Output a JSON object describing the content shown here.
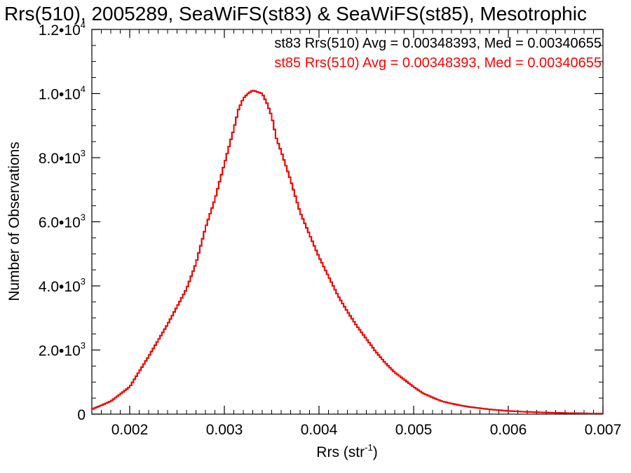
{
  "chart_data": {
    "type": "bar",
    "title": "Rrs(510), 2005289, SeaWiFS(st83) & SeaWiFS(st85), Mesotrophic",
    "xlabel": "Rrs (str",
    "xlabel_sup": "-1",
    "xlabel_close": ")",
    "ylabel": "Number of Observations",
    "xlim": [
      0.0016,
      0.007
    ],
    "ylim": [
      0,
      12000
    ],
    "x_ticks": [
      0.002,
      0.003,
      0.004,
      0.005,
      0.006,
      0.007
    ],
    "x_tick_labels": [
      "0.002",
      "0.003",
      "0.004",
      "0.005",
      "0.006",
      "0.007"
    ],
    "y_ticks": [
      0,
      2000,
      4000,
      6000,
      8000,
      10000,
      12000
    ],
    "y_tick_labels": [
      {
        "mant": "0",
        "exp": ""
      },
      {
        "mant": "2.0•10",
        "exp": "3"
      },
      {
        "mant": "4.0•10",
        "exp": "3"
      },
      {
        "mant": "6.0•10",
        "exp": "3"
      },
      {
        "mant": "8.0•10",
        "exp": "3"
      },
      {
        "mant": "1.0•10",
        "exp": "4"
      },
      {
        "mant": "1.2•10",
        "exp": "4"
      }
    ],
    "grid": false,
    "legend_position": "top-right",
    "series": [
      {
        "name": "st83 Rrs(510) Avg = 0.00348393, Med = 0.00340655",
        "color": "#000000",
        "style": "step",
        "x": [
          0.0016,
          0.0018,
          0.002,
          0.0022,
          0.0024,
          0.0026,
          0.0027,
          0.0028,
          0.0029,
          0.003,
          0.0031,
          0.00315,
          0.0032,
          0.00325,
          0.0033,
          0.00335,
          0.0034,
          0.00345,
          0.0035,
          0.00355,
          0.0036,
          0.0037,
          0.0038,
          0.0039,
          0.004,
          0.0041,
          0.0042,
          0.0043,
          0.0044,
          0.0045,
          0.0046,
          0.0047,
          0.0048,
          0.0049,
          0.005,
          0.0051,
          0.0052,
          0.0053,
          0.0054,
          0.0055,
          0.0056,
          0.0058,
          0.006,
          0.0062,
          0.0064,
          0.0066,
          0.0068,
          0.007
        ],
        "values": [
          150,
          400,
          850,
          1800,
          2800,
          3900,
          4700,
          5800,
          6700,
          7800,
          8900,
          9500,
          9850,
          10000,
          10100,
          10050,
          10000,
          9700,
          9300,
          8600,
          8200,
          7300,
          6300,
          5600,
          4900,
          4300,
          3700,
          3200,
          2750,
          2350,
          1950,
          1600,
          1300,
          1080,
          850,
          650,
          520,
          400,
          330,
          270,
          220,
          150,
          100,
          70,
          50,
          35,
          25,
          15
        ]
      },
      {
        "name": "st85 Rrs(510) Avg = 0.00348393, Med = 0.00340655",
        "color": "#ff0000",
        "style": "step",
        "x": [
          0.0016,
          0.0018,
          0.002,
          0.0022,
          0.0024,
          0.0026,
          0.0027,
          0.0028,
          0.0029,
          0.003,
          0.0031,
          0.00315,
          0.0032,
          0.00325,
          0.0033,
          0.00335,
          0.0034,
          0.00345,
          0.0035,
          0.00355,
          0.0036,
          0.0037,
          0.0038,
          0.0039,
          0.004,
          0.0041,
          0.0042,
          0.0043,
          0.0044,
          0.0045,
          0.0046,
          0.0047,
          0.0048,
          0.0049,
          0.005,
          0.0051,
          0.0052,
          0.0053,
          0.0054,
          0.0055,
          0.0056,
          0.0058,
          0.006,
          0.0062,
          0.0064,
          0.0066,
          0.0068,
          0.007
        ],
        "values": [
          150,
          400,
          850,
          1800,
          2800,
          3900,
          4700,
          5800,
          6700,
          7800,
          8900,
          9500,
          9850,
          10000,
          10100,
          10050,
          10000,
          9700,
          9300,
          8600,
          8200,
          7300,
          6300,
          5600,
          4900,
          4300,
          3700,
          3200,
          2750,
          2350,
          1950,
          1600,
          1300,
          1080,
          850,
          650,
          520,
          400,
          330,
          270,
          220,
          150,
          100,
          70,
          50,
          35,
          25,
          15
        ]
      }
    ]
  }
}
